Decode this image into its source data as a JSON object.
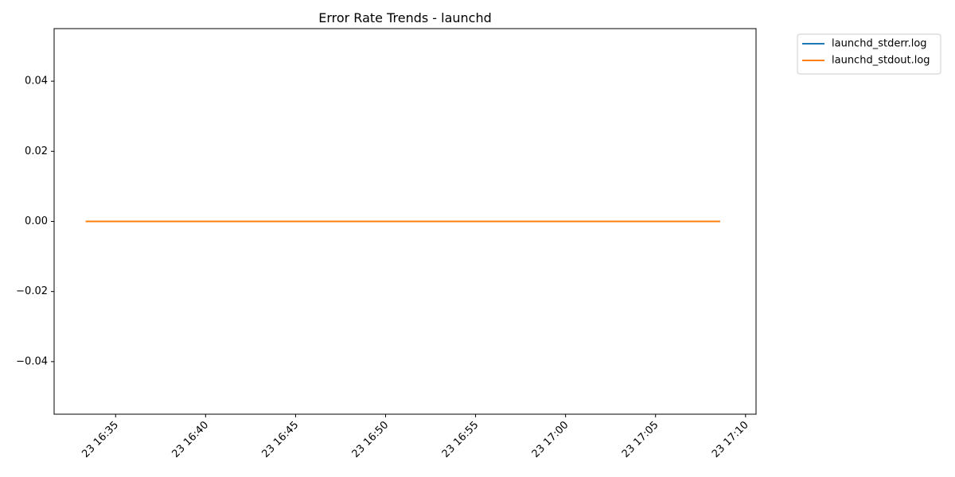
{
  "chart_data": {
    "type": "line",
    "title": "Error Rate Trends - launchd",
    "xlabel": "",
    "ylabel": "",
    "x_axis_kind": "datetime",
    "xlim": [
      "2025-01-23 16:31:35",
      "2025-01-23 17:10:35"
    ],
    "ylim": [
      -0.055,
      0.055
    ],
    "y_ticks": [
      -0.04,
      -0.02,
      0.0,
      0.02,
      0.04
    ],
    "y_tick_labels": [
      "−0.04",
      "−0.02",
      "0.00",
      "0.02",
      "0.04"
    ],
    "x_ticks": [
      "2025-01-23 16:35:00",
      "2025-01-23 16:40:00",
      "2025-01-23 16:45:00",
      "2025-01-23 16:50:00",
      "2025-01-23 16:55:00",
      "2025-01-23 17:00:00",
      "2025-01-23 17:05:00",
      "2025-01-23 17:10:00"
    ],
    "x_tick_labels": [
      "23 16:35",
      "23 16:40",
      "23 16:45",
      "23 16:50",
      "23 16:55",
      "23 17:00",
      "23 17:05",
      "23 17:10"
    ],
    "grid": false,
    "legend_position": "outside-top-right",
    "series": [
      {
        "name": "launchd_stderr.log",
        "color": "#1f77b4",
        "x": [
          "2025-01-23 16:33:20",
          "2025-01-23 17:08:35"
        ],
        "values": [
          0,
          0
        ]
      },
      {
        "name": "launchd_stdout.log",
        "color": "#ff7f0e",
        "x": [
          "2025-01-23 16:33:20",
          "2025-01-23 17:08:35"
        ],
        "values": [
          0,
          0
        ]
      }
    ]
  }
}
